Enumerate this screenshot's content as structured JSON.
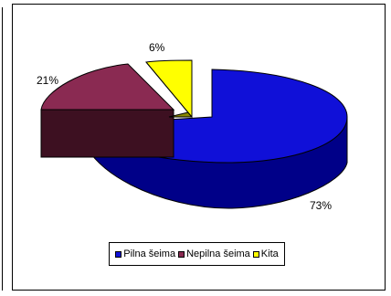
{
  "chart_data": {
    "type": "pie",
    "variant": "3d-exploded",
    "title": "",
    "series": [
      {
        "name": "Pilna šeima",
        "value": 73,
        "label": "73%",
        "color": "#1010d8",
        "side_color": "#000088"
      },
      {
        "name": "Nepilna šeima",
        "value": 21,
        "label": "21%",
        "color": "#8a2a52",
        "side_color": "#3d1021"
      },
      {
        "name": "Kita",
        "value": 6,
        "label": "6%",
        "color": "#ffff00",
        "side_color": "#888800"
      }
    ],
    "legend_position": "bottom"
  }
}
